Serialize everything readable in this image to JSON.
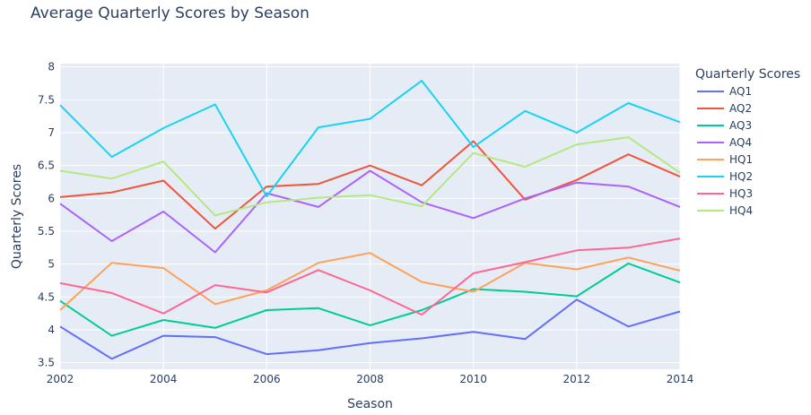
{
  "chart_data": {
    "type": "line",
    "title": "Average Quarterly Scores by Season",
    "xlabel": "Season",
    "ylabel": "Quarterly Scores",
    "legend_title": "Quarterly Scores",
    "legend_position": "right",
    "grid": true,
    "colors": {
      "plot_background": "#e5ecf6",
      "grid": "#ffffff",
      "text": "#2a3f5f"
    },
    "x": [
      2002,
      2003,
      2004,
      2005,
      2006,
      2007,
      2008,
      2009,
      2010,
      2011,
      2012,
      2013,
      2014
    ],
    "xlim": [
      2002,
      2014
    ],
    "ylim": [
      3.4,
      8.05
    ],
    "xticks": [
      2002,
      2004,
      2006,
      2008,
      2010,
      2012,
      2014
    ],
    "xtick_labels": [
      "2002",
      "2004",
      "2006",
      "2008",
      "2010",
      "2012",
      "2014"
    ],
    "yticks": [
      3.5,
      4,
      4.5,
      5,
      5.5,
      6,
      6.5,
      7,
      7.5,
      8
    ],
    "ytick_labels": [
      "3.5",
      "4",
      "4.5",
      "5",
      "5.5",
      "6",
      "6.5",
      "7",
      "7.5",
      "8"
    ],
    "series": [
      {
        "name": "AQ1",
        "color": "#636efa",
        "values": [
          4.05,
          3.56,
          3.91,
          3.89,
          3.63,
          3.69,
          3.8,
          3.87,
          3.97,
          3.86,
          4.46,
          4.05,
          4.28
        ]
      },
      {
        "name": "AQ2",
        "color": "#ef553b",
        "values": [
          6.02,
          6.09,
          6.27,
          5.54,
          6.18,
          6.22,
          6.5,
          6.2,
          6.87,
          5.98,
          6.28,
          6.67,
          6.33
        ]
      },
      {
        "name": "AQ3",
        "color": "#00cc96",
        "values": [
          4.44,
          3.91,
          4.15,
          4.03,
          4.3,
          4.33,
          4.07,
          4.3,
          4.62,
          4.58,
          4.51,
          5.01,
          4.72
        ]
      },
      {
        "name": "AQ4",
        "color": "#ab63fa",
        "values": [
          5.92,
          5.35,
          5.8,
          5.18,
          6.08,
          5.87,
          6.42,
          5.94,
          5.7,
          6.0,
          6.24,
          6.18,
          5.87
        ]
      },
      {
        "name": "HQ1",
        "color": "#ffa15a",
        "values": [
          4.3,
          5.02,
          4.94,
          4.39,
          4.6,
          5.02,
          5.17,
          4.73,
          4.58,
          5.02,
          4.92,
          5.1,
          4.9
        ]
      },
      {
        "name": "HQ2",
        "color": "#19d3f3",
        "values": [
          7.42,
          6.63,
          7.07,
          7.43,
          6.03,
          7.08,
          7.21,
          7.79,
          6.78,
          7.33,
          7.0,
          7.45,
          7.16
        ]
      },
      {
        "name": "HQ3",
        "color": "#ff6692",
        "values": [
          4.71,
          4.56,
          4.25,
          4.68,
          4.57,
          4.91,
          4.6,
          4.23,
          4.86,
          5.03,
          5.21,
          5.25,
          5.39
        ]
      },
      {
        "name": "HQ4",
        "color": "#b6e880",
        "values": [
          6.42,
          6.3,
          6.56,
          5.74,
          5.94,
          6.01,
          6.05,
          5.88,
          6.69,
          6.48,
          6.82,
          6.93,
          6.39
        ]
      }
    ]
  }
}
